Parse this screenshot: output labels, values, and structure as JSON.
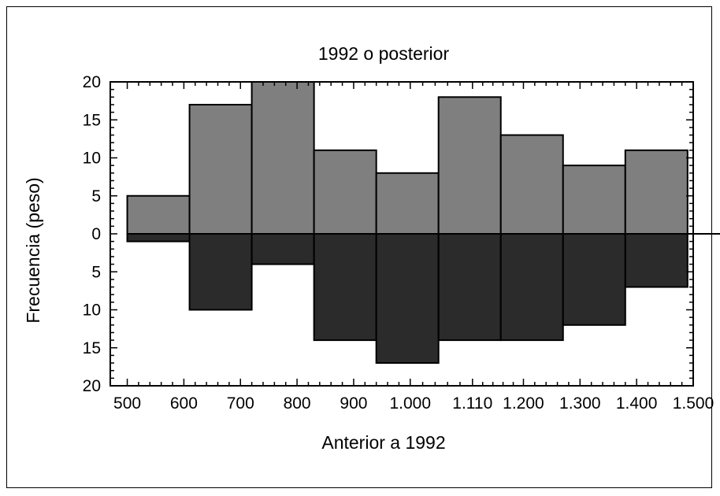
{
  "chart_data": {
    "type": "bar",
    "title": "1992 o posterior",
    "xlabel": "Anterior a 1992",
    "ylabel": "Frecuencia (peso)",
    "x_bins": [
      500,
      610,
      720,
      830,
      940,
      1050,
      1160,
      1270,
      1380,
      1490
    ],
    "x_ticks": [
      500,
      600,
      700,
      800,
      900,
      1000,
      1110,
      1200,
      1300,
      1400,
      1500
    ],
    "x_tick_labels": [
      "500",
      "600",
      "700",
      "800",
      "900",
      "1.000",
      "1.110",
      "1.200",
      "1.300",
      "1.400",
      "1.500"
    ],
    "xlim": [
      470,
      1500
    ],
    "y_ticks": [
      -20,
      -15,
      -10,
      -5,
      0,
      5,
      10,
      15,
      20
    ],
    "y_tick_labels": [
      "20",
      "15",
      "10",
      "5",
      "0",
      "5",
      "10",
      "15",
      "20"
    ],
    "ylim": [
      -20,
      20
    ],
    "series": [
      {
        "values": [
          5,
          17,
          20,
          11,
          8,
          18,
          13,
          9,
          11
        ],
        "color": "#7f7f7f"
      },
      {
        "values": [
          1,
          10,
          4,
          14,
          17,
          14,
          14,
          12,
          7
        ],
        "color": "#2b2b2b"
      }
    ],
    "grid": false,
    "legend": "none"
  }
}
